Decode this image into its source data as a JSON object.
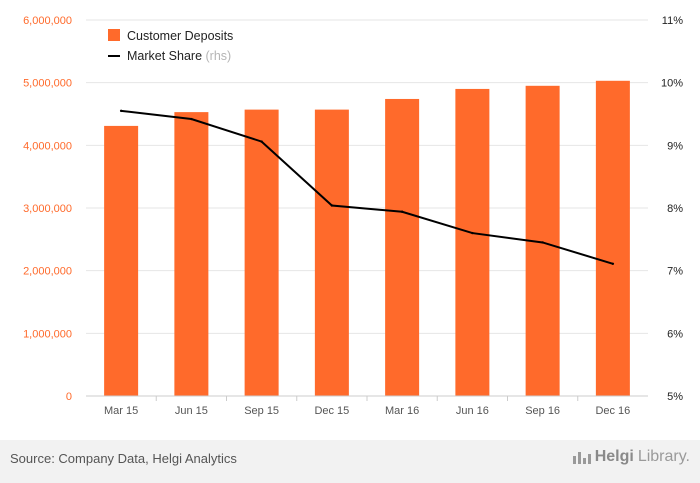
{
  "chart_data": {
    "type": "bar",
    "categories": [
      "Mar 15",
      "Jun 15",
      "Sep 15",
      "Dec 15",
      "Mar 16",
      "Jun 16",
      "Sep 16",
      "Dec 16"
    ],
    "series": [
      {
        "name": "Customer Deposits",
        "type": "bar",
        "axis": "left",
        "values": [
          4310000,
          4530000,
          4570000,
          4570000,
          4740000,
          4900000,
          4950000,
          5030000
        ],
        "color": "#ff6a2b"
      },
      {
        "name": "Market Share",
        "name_suffix": "(rhs)",
        "type": "line",
        "axis": "right",
        "values": [
          9.55,
          9.42,
          9.06,
          8.04,
          7.94,
          7.6,
          7.45,
          7.11
        ],
        "color": "#000000"
      }
    ],
    "y_left": {
      "ylim": [
        0,
        6000000
      ],
      "tick_labels": [
        "0",
        "1,000,000",
        "2,000,000",
        "3,000,000",
        "4,000,000",
        "5,000,000",
        "6,000,000"
      ],
      "color": "#ff6a2b"
    },
    "y_right": {
      "ylim": [
        5,
        11
      ],
      "tick_labels": [
        "5%",
        "6%",
        "7%",
        "8%",
        "9%",
        "10%",
        "11%"
      ]
    },
    "grid": true,
    "legend_placement": "top-left"
  },
  "footer": {
    "source": "Source: Company Data, Helgi Analytics",
    "brand_prefix": "Helgi",
    "brand_suffix": "Library."
  }
}
